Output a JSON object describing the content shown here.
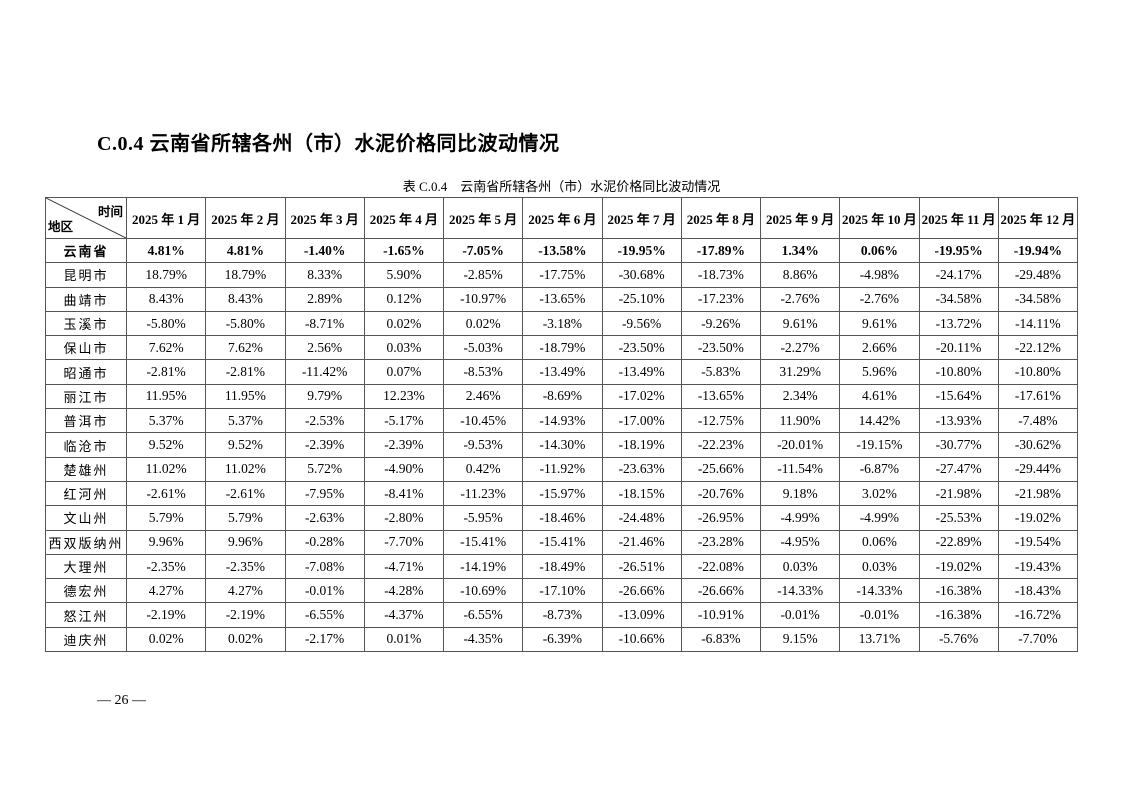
{
  "section_title": "C.0.4 云南省所辖各州（市）水泥价格同比波动情况",
  "table_caption": "表 C.0.4　云南省所辖各州（市）水泥价格同比波动情况",
  "table": {
    "corner_time": "时间",
    "corner_region": "地区",
    "columns": [
      "2025 年 1 月",
      "2025 年 2 月",
      "2025 年 3 月",
      "2025 年 4 月",
      "2025 年 5 月",
      "2025 年 6 月",
      "2025 年 7 月",
      "2025 年 8 月",
      "2025 年 9 月",
      "2025 年 10 月",
      "2025 年 11 月",
      "2025 年 12 月"
    ],
    "rows": [
      {
        "region": "云南省",
        "bold": true,
        "values": [
          "4.81%",
          "4.81%",
          "-1.40%",
          "-1.65%",
          "-7.05%",
          "-13.58%",
          "-19.95%",
          "-17.89%",
          "1.34%",
          "0.06%",
          "-19.95%",
          "-19.94%"
        ]
      },
      {
        "region": "昆明市",
        "values": [
          "18.79%",
          "18.79%",
          "8.33%",
          "5.90%",
          "-2.85%",
          "-17.75%",
          "-30.68%",
          "-18.73%",
          "8.86%",
          "-4.98%",
          "-24.17%",
          "-29.48%"
        ]
      },
      {
        "region": "曲靖市",
        "values": [
          "8.43%",
          "8.43%",
          "2.89%",
          "0.12%",
          "-10.97%",
          "-13.65%",
          "-25.10%",
          "-17.23%",
          "-2.76%",
          "-2.76%",
          "-34.58%",
          "-34.58%"
        ]
      },
      {
        "region": "玉溪市",
        "values": [
          "-5.80%",
          "-5.80%",
          "-8.71%",
          "0.02%",
          "0.02%",
          "-3.18%",
          "-9.56%",
          "-9.26%",
          "9.61%",
          "9.61%",
          "-13.72%",
          "-14.11%"
        ]
      },
      {
        "region": "保山市",
        "values": [
          "7.62%",
          "7.62%",
          "2.56%",
          "0.03%",
          "-5.03%",
          "-18.79%",
          "-23.50%",
          "-23.50%",
          "-2.27%",
          "2.66%",
          "-20.11%",
          "-22.12%"
        ]
      },
      {
        "region": "昭通市",
        "values": [
          "-2.81%",
          "-2.81%",
          "-11.42%",
          "0.07%",
          "-8.53%",
          "-13.49%",
          "-13.49%",
          "-5.83%",
          "31.29%",
          "5.96%",
          "-10.80%",
          "-10.80%"
        ]
      },
      {
        "region": "丽江市",
        "values": [
          "11.95%",
          "11.95%",
          "9.79%",
          "12.23%",
          "2.46%",
          "-8.69%",
          "-17.02%",
          "-13.65%",
          "2.34%",
          "4.61%",
          "-15.64%",
          "-17.61%"
        ]
      },
      {
        "region": "普洱市",
        "values": [
          "5.37%",
          "5.37%",
          "-2.53%",
          "-5.17%",
          "-10.45%",
          "-14.93%",
          "-17.00%",
          "-12.75%",
          "11.90%",
          "14.42%",
          "-13.93%",
          "-7.48%"
        ]
      },
      {
        "region": "临沧市",
        "values": [
          "9.52%",
          "9.52%",
          "-2.39%",
          "-2.39%",
          "-9.53%",
          "-14.30%",
          "-18.19%",
          "-22.23%",
          "-20.01%",
          "-19.15%",
          "-30.77%",
          "-30.62%"
        ]
      },
      {
        "region": "楚雄州",
        "values": [
          "11.02%",
          "11.02%",
          "5.72%",
          "-4.90%",
          "0.42%",
          "-11.92%",
          "-23.63%",
          "-25.66%",
          "-11.54%",
          "-6.87%",
          "-27.47%",
          "-29.44%"
        ]
      },
      {
        "region": "红河州",
        "values": [
          "-2.61%",
          "-2.61%",
          "-7.95%",
          "-8.41%",
          "-11.23%",
          "-15.97%",
          "-18.15%",
          "-20.76%",
          "9.18%",
          "3.02%",
          "-21.98%",
          "-21.98%"
        ]
      },
      {
        "region": "文山州",
        "values": [
          "5.79%",
          "5.79%",
          "-2.63%",
          "-2.80%",
          "-5.95%",
          "-18.46%",
          "-24.48%",
          "-26.95%",
          "-4.99%",
          "-4.99%",
          "-25.53%",
          "-19.02%"
        ]
      },
      {
        "region": "西双版纳州",
        "values": [
          "9.96%",
          "9.96%",
          "-0.28%",
          "-7.70%",
          "-15.41%",
          "-15.41%",
          "-21.46%",
          "-23.28%",
          "-4.95%",
          "0.06%",
          "-22.89%",
          "-19.54%"
        ]
      },
      {
        "region": "大理州",
        "values": [
          "-2.35%",
          "-2.35%",
          "-7.08%",
          "-4.71%",
          "-14.19%",
          "-18.49%",
          "-26.51%",
          "-22.08%",
          "0.03%",
          "0.03%",
          "-19.02%",
          "-19.43%"
        ]
      },
      {
        "region": "德宏州",
        "values": [
          "4.27%",
          "4.27%",
          "-0.01%",
          "-4.28%",
          "-10.69%",
          "-17.10%",
          "-26.66%",
          "-26.66%",
          "-14.33%",
          "-14.33%",
          "-16.38%",
          "-18.43%"
        ]
      },
      {
        "region": "怒江州",
        "values": [
          "-2.19%",
          "-2.19%",
          "-6.55%",
          "-4.37%",
          "-6.55%",
          "-8.73%",
          "-13.09%",
          "-10.91%",
          "-0.01%",
          "-0.01%",
          "-16.38%",
          "-16.72%"
        ]
      },
      {
        "region": "迪庆州",
        "values": [
          "0.02%",
          "0.02%",
          "-2.17%",
          "0.01%",
          "-4.35%",
          "-6.39%",
          "-10.66%",
          "-6.83%",
          "9.15%",
          "13.71%",
          "-5.76%",
          "-7.70%"
        ]
      }
    ]
  },
  "page_number": "— 26 —"
}
